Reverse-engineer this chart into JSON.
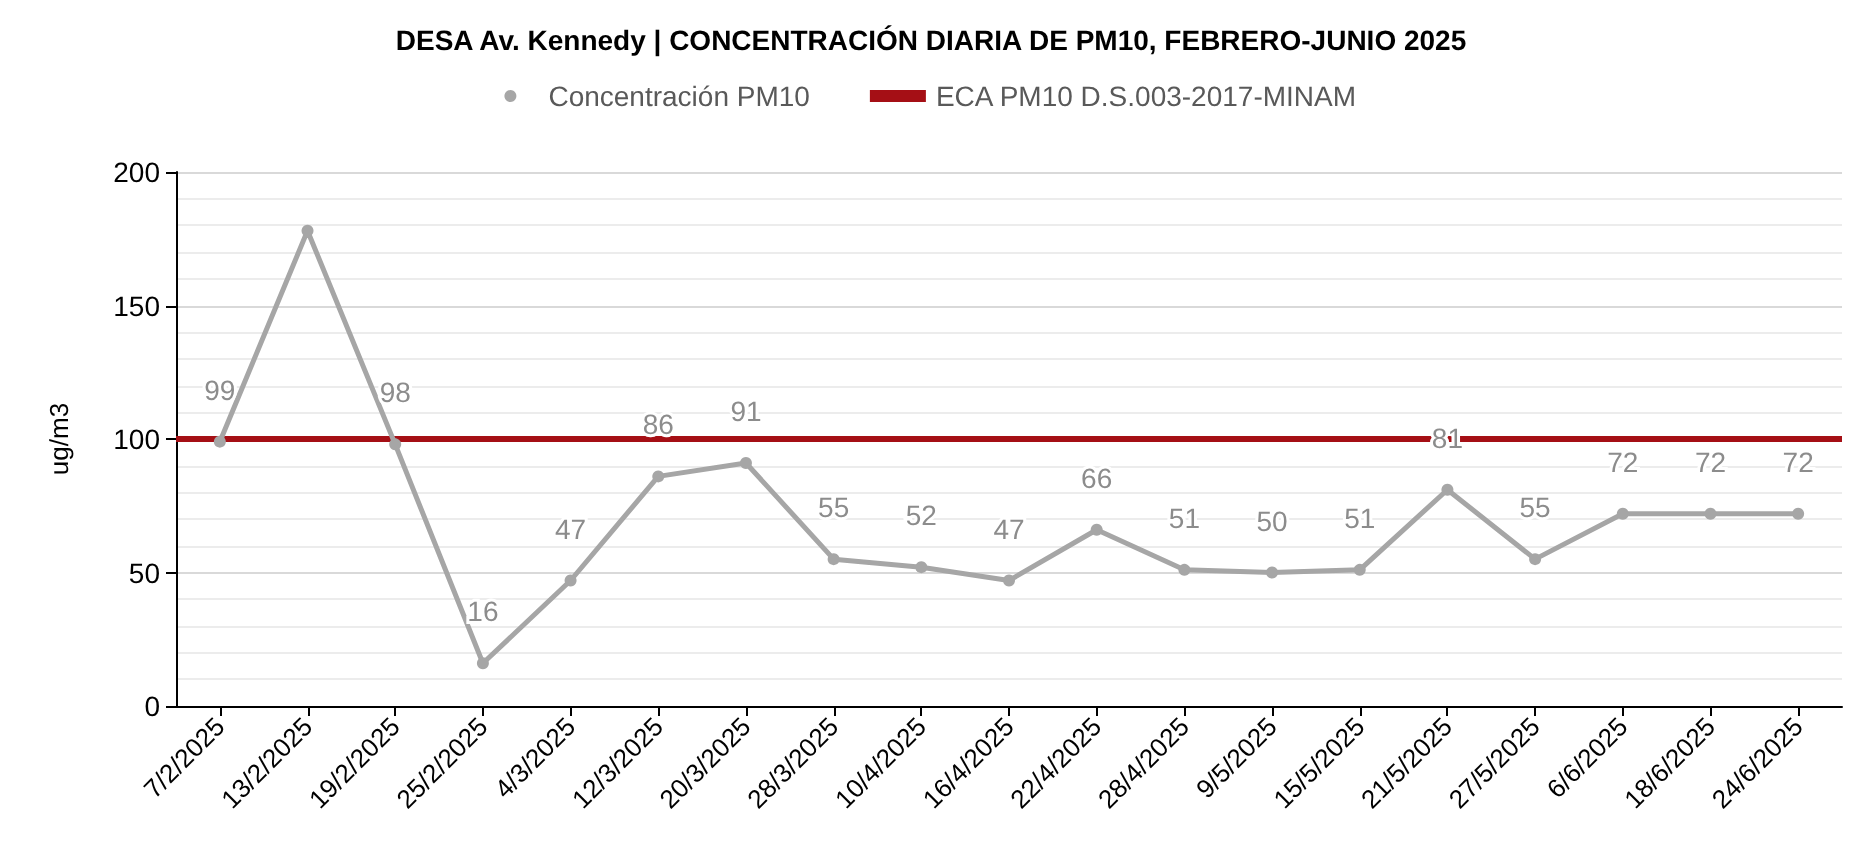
{
  "chart_data": {
    "type": "line",
    "title": "DESA Av. Kennedy | CONCENTRACIÓN DIARIA DE PM10, FEBRERO-JUNIO 2025",
    "ylabel": "ug/m3",
    "categories": [
      "7/2/2025",
      "13/2/2025",
      "19/2/2025",
      "25/2/2025",
      "4/3/2025",
      "12/3/2025",
      "20/3/2025",
      "28/3/2025",
      "10/4/2025",
      "16/4/2025",
      "22/4/2025",
      "28/4/2025",
      "9/5/2025",
      "15/5/2025",
      "21/5/2025",
      "27/5/2025",
      "6/6/2025",
      "18/6/2025",
      "24/6/2025"
    ],
    "series": [
      {
        "name": "Concentración PM10",
        "color": "#a6a6a6",
        "values": [
          99,
          178,
          98,
          16,
          47,
          86,
          91,
          55,
          52,
          47,
          66,
          51,
          50,
          51,
          81,
          55,
          72,
          72,
          72
        ],
        "value_labels": [
          "99",
          null,
          "98",
          "16",
          "47",
          "86",
          "91",
          "55",
          "52",
          "47",
          "66",
          "51",
          "50",
          "51",
          "81",
          "55",
          "72",
          "72",
          "72"
        ]
      }
    ],
    "ref_lines": [
      {
        "axis": "y",
        "value": 100,
        "label": "ECA PM10 D.S.003-2017-MINAM",
        "color": "#a50f15"
      }
    ],
    "ylim": [
      0,
      200
    ],
    "yticks": [
      0,
      50,
      100,
      150,
      200
    ],
    "grid": "y",
    "legend": "top",
    "marker": "circle",
    "line_style": "solid"
  }
}
